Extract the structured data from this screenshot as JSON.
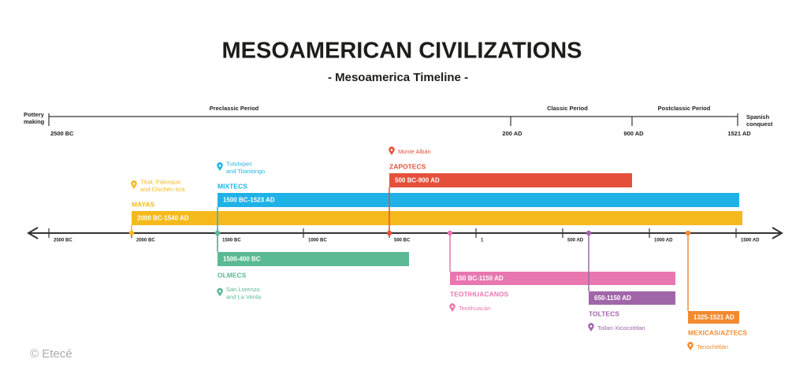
{
  "header": {
    "title": "MESOAMERICAN CIVILIZATIONS",
    "subtitle": "- Mesoamerica Timeline -"
  },
  "periods": {
    "start_note": [
      "Pottery",
      "making"
    ],
    "end_note": [
      "Spanish",
      "conquest"
    ],
    "names": [
      "Preclassic Period",
      "Classic Period",
      "Postclassic Period"
    ],
    "dates": [
      "2500 BC",
      "200 AD",
      "900 AD",
      "1521 AD"
    ]
  },
  "axis": {
    "ticks": [
      "2500 BC",
      "2000 BC",
      "1500 BC",
      "1000 BC",
      "500 BC",
      "1",
      "500 AD",
      "1000 AD",
      "1500 AD"
    ]
  },
  "civilizations": [
    {
      "name": "MAYAS",
      "range": "2000 BC-1540 AD",
      "place": [
        "Tikal, Palenque",
        "and Chichén Itzá"
      ],
      "color": "#f6b91d"
    },
    {
      "name": "MIXTECS",
      "range": "1500 BC-1523 AD",
      "place": [
        "Tututepec",
        "and Tilantongo"
      ],
      "color": "#1eb2e6"
    },
    {
      "name": "ZAPOTECS",
      "range": "500 BC-900 AD",
      "place": [
        "Monte Albán"
      ],
      "color": "#e5503a"
    },
    {
      "name": "OLMECS",
      "range": "1500-400 BC",
      "place": [
        "San Lorenzo",
        "and La Venta"
      ],
      "color": "#5bb993"
    },
    {
      "name": "TEOTIHUACANOS",
      "range": "150 BC-1150 AD",
      "place": [
        "Teotihuacán"
      ],
      "color": "#e877b0"
    },
    {
      "name": "TOLTECS",
      "range": "650-1150 AD",
      "place": [
        "Tollan-Xicocotitlan"
      ],
      "color": "#a066a9"
    },
    {
      "name": "MEXICAS/AZTECS",
      "range": "1325-1521 AD",
      "place": [
        "Tenochtitlán"
      ],
      "color": "#f38a2f"
    }
  ],
  "credit": "© Etecé"
}
